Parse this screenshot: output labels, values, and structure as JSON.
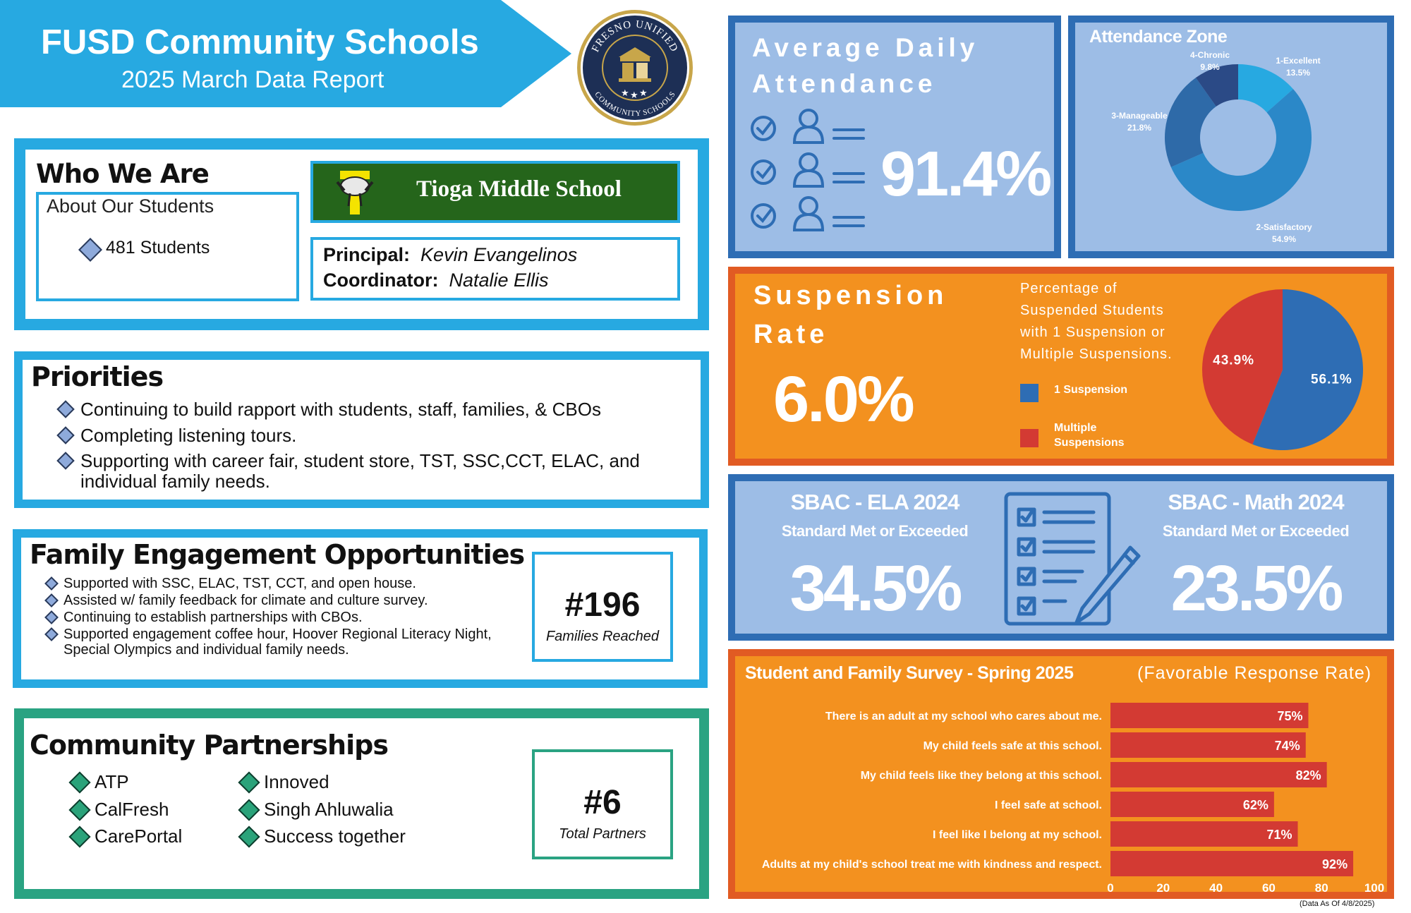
{
  "header": {
    "title": "FUSD Community Schools",
    "subtitle": "2025 March Data Report",
    "logo_ring_text_top": "FRESNO UNIFIED",
    "logo_ring_text_bottom": "COMMUNITY SCHOOLS",
    "banner_color": "#27a9e1"
  },
  "who_we_are": {
    "title": "Who We Are",
    "about_label": "About Our Students",
    "students": "481 Students",
    "school_name": "Tioga Middle School",
    "principal_label": "Principal:",
    "principal_name": "Kevin Evangelinos",
    "coordinator_label": "Coordinator:",
    "coordinator_name": "Natalie Ellis"
  },
  "priorities": {
    "title": "Priorities",
    "items": [
      "Continuing to build rapport with students, staff, families, & CBOs",
      "Completing listening tours.",
      "Supporting with career fair, student store, TST, SSC,CCT, ELAC, and individual family needs."
    ]
  },
  "family_engagement": {
    "title": "Family Engagement Opportunities",
    "items": [
      "Supported with SSC, ELAC, TST, CCT, and open house.",
      "Assisted w/ family feedback for climate and culture survey.",
      "Continuing to establish partnerships with CBOs.",
      "Supported engagement coffee hour, Hoover Regional Literacy Night, Special Olympics and individual family needs."
    ],
    "stat_value": "#196",
    "stat_label": "Families Reached"
  },
  "community_partnerships": {
    "title": "Community Partnerships",
    "col1": [
      "ATP",
      "CalFresh",
      "CarePortal"
    ],
    "col2": [
      "Innoved",
      "Singh Ahluwalia",
      "Success together"
    ],
    "stat_value": "#6",
    "stat_label": "Total Partners"
  },
  "ada": {
    "title_line1": "Average Daily",
    "title_line2": "Attendance",
    "value": "91.4%",
    "icon": "attendance-check-person-icon"
  },
  "attendance_zone": {
    "title": "Attendance Zone"
  },
  "suspension": {
    "title_line1": "Suspension",
    "title_line2": "Rate",
    "value": "6.0%",
    "desc_lines": [
      "Percentage of",
      "Suspended Students",
      "with 1 Suspension or",
      "Multiple Suspensions."
    ]
  },
  "sbac": {
    "ela_title": "SBAC - ELA 2024",
    "ela_sub": "Standard Met or Exceeded",
    "ela_value": "34.5%",
    "math_title": "SBAC - Math 2024",
    "math_sub": "Standard Met or Exceeded",
    "math_value": "23.5%",
    "icon": "checklist-pencil-icon"
  },
  "survey": {
    "title": "Student and Family Survey - Spring 2025",
    "note": "(Favorable Response Rate)"
  },
  "footnote": "(Data As Of 4/8/2025)",
  "chart_data": [
    {
      "type": "pie",
      "title": "Attendance Zone",
      "donut": true,
      "categories": [
        "1-Excellent",
        "2-Satisfactory",
        "3-Manageable",
        "4-Chronic"
      ],
      "values": [
        13.5,
        54.9,
        21.8,
        9.8
      ],
      "labels": [
        "13.5%",
        "54.9%",
        "21.8%",
        "9.8%"
      ],
      "colors": [
        "#27a9e1",
        "#2b88c8",
        "#2e6aa8",
        "#2b4a86"
      ]
    },
    {
      "type": "pie",
      "title": "",
      "categories": [
        "1 Suspension",
        "Multiple Suspensions"
      ],
      "values": [
        56.1,
        43.9
      ],
      "labels": [
        "56.1%",
        "43.9%"
      ],
      "colors": [
        "#2e6db4",
        "#d33a33"
      ],
      "legend": "left"
    },
    {
      "type": "bar",
      "orientation": "horizontal",
      "title": "Student and Family Survey - Spring 2025",
      "categories": [
        "There is an adult at my school who cares about me.",
        "My child feels safe at this school.",
        "My child feels like they belong at this school.",
        "I feel safe at school.",
        "I feel like I belong at my school.",
        "Adults at my child's school treat me with kindness and respect."
      ],
      "values": [
        75,
        74,
        82,
        62,
        71,
        92
      ],
      "labels": [
        "75%",
        "74%",
        "82%",
        "62%",
        "71%",
        "92%"
      ],
      "xlim": [
        0,
        100
      ],
      "xticks": [
        0,
        20,
        40,
        60,
        80,
        100
      ],
      "bar_color": "#d33a33"
    }
  ]
}
